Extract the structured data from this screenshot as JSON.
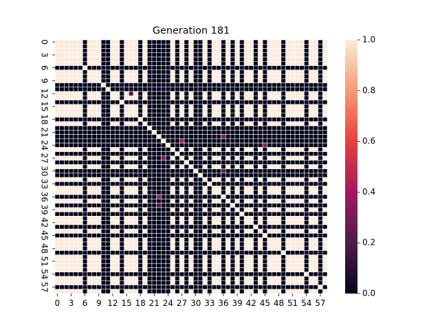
{
  "chart_data": {
    "type": "heatmap",
    "title": "Generation 181",
    "xlabel": "",
    "ylabel": "",
    "size": 59,
    "xticks": [
      "0",
      "3",
      "6",
      "9",
      "12",
      "15",
      "18",
      "21",
      "24",
      "27",
      "30",
      "33",
      "36",
      "39",
      "42",
      "45",
      "48",
      "51",
      "54",
      "57"
    ],
    "yticks": [
      "0",
      "3",
      "6",
      "9",
      "12",
      "15",
      "18",
      "21",
      "24",
      "27",
      "30",
      "33",
      "36",
      "39",
      "42",
      "45",
      "48",
      "51",
      "54",
      "57"
    ],
    "zero_indices": [
      6,
      10,
      11,
      14,
      18,
      20,
      21,
      22,
      23,
      24,
      26,
      28,
      30,
      31,
      33,
      36,
      38,
      40,
      43,
      45,
      49,
      54,
      57
    ],
    "diagonal_value": 1.0,
    "highlights": [
      {
        "row": 22,
        "col": 22,
        "value": 0.5
      },
      {
        "row": 23,
        "col": 27,
        "value": 0.4
      },
      {
        "row": 22,
        "col": 36,
        "value": 0.3
      },
      {
        "row": 36,
        "col": 22,
        "value": 0.4
      },
      {
        "row": 27,
        "col": 23,
        "value": 0.3
      },
      {
        "row": 24,
        "col": 45,
        "value": 0.35
      },
      {
        "row": 12,
        "col": 16,
        "value": 0.2
      },
      {
        "row": 30,
        "col": 36,
        "value": 0.25
      },
      {
        "row": 38,
        "col": 22,
        "value": 0.2
      }
    ],
    "colorbar": {
      "min": 0.0,
      "max": 1.0,
      "ticks": [
        "0.0",
        "0.2",
        "0.4",
        "0.6",
        "0.8",
        "1.0"
      ],
      "colormap": "rocket",
      "colors": [
        "#03051a",
        "#4c1d4b",
        "#a11a5b",
        "#e83f3f",
        "#f69c73",
        "#faebdd"
      ]
    },
    "grid_line_color": "#ffffff"
  }
}
